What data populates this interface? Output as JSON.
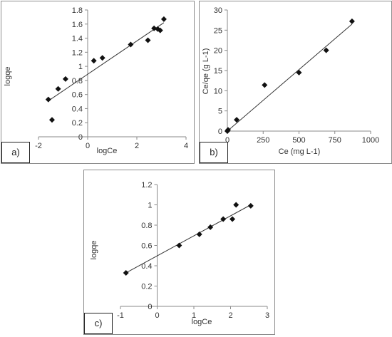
{
  "chart_data": [
    {
      "panel": "a)",
      "type": "scatter",
      "xlabel": "logCe",
      "ylabel": "logqe",
      "xlim": [
        -2,
        4
      ],
      "ylim": [
        0,
        1.8
      ],
      "xticks": [
        -2,
        0,
        2,
        4
      ],
      "yticks": [
        0,
        0.2,
        0.4,
        0.6,
        0.8,
        1,
        1.2,
        1.4,
        1.6,
        1.8
      ],
      "points": [
        [
          -1.6,
          0.53
        ],
        [
          -1.45,
          0.24
        ],
        [
          -1.2,
          0.68
        ],
        [
          -0.9,
          0.82
        ],
        [
          0.25,
          1.08
        ],
        [
          0.6,
          1.12
        ],
        [
          1.75,
          1.31
        ],
        [
          2.45,
          1.37
        ],
        [
          2.7,
          1.54
        ],
        [
          2.85,
          1.53
        ],
        [
          2.95,
          1.51
        ],
        [
          3.1,
          1.67
        ]
      ],
      "trendline": [
        [
          -1.6,
          0.51
        ],
        [
          3.1,
          1.62
        ]
      ],
      "grid": false
    },
    {
      "panel": "b)",
      "type": "scatter",
      "xlabel": "Ce (mg L-1)",
      "ylabel": "Ce/qe (g L-1)",
      "xlim": [
        0,
        1000
      ],
      "ylim": [
        0,
        30
      ],
      "xticks": [
        0,
        250,
        500,
        750,
        1000
      ],
      "yticks": [
        0,
        5,
        10,
        15,
        20,
        25,
        30
      ],
      "points": [
        [
          0,
          0
        ],
        [
          5,
          0.3
        ],
        [
          65,
          2.8
        ],
        [
          260,
          11.4
        ],
        [
          500,
          14.5
        ],
        [
          690,
          20
        ],
        [
          870,
          27.2
        ]
      ],
      "trendline": [
        [
          0,
          0
        ],
        [
          870,
          26.5
        ]
      ],
      "grid": false
    },
    {
      "panel": "c)",
      "type": "scatter",
      "xlabel": "logCe",
      "ylabel": "logqe",
      "xlim": [
        -1,
        3
      ],
      "ylim": [
        0,
        1.2
      ],
      "xticks": [
        -1,
        0,
        1,
        2,
        3
      ],
      "yticks": [
        0,
        0.2,
        0.4,
        0.6,
        0.8,
        1,
        1.2
      ],
      "points": [
        [
          -0.85,
          0.33
        ],
        [
          0.6,
          0.6
        ],
        [
          1.15,
          0.71
        ],
        [
          1.45,
          0.78
        ],
        [
          1.8,
          0.86
        ],
        [
          2.05,
          0.86
        ],
        [
          2.15,
          1.0
        ],
        [
          2.55,
          0.99
        ]
      ],
      "trendline": [
        [
          -0.85,
          0.33
        ],
        [
          2.55,
          1.0
        ]
      ],
      "grid": false
    }
  ]
}
